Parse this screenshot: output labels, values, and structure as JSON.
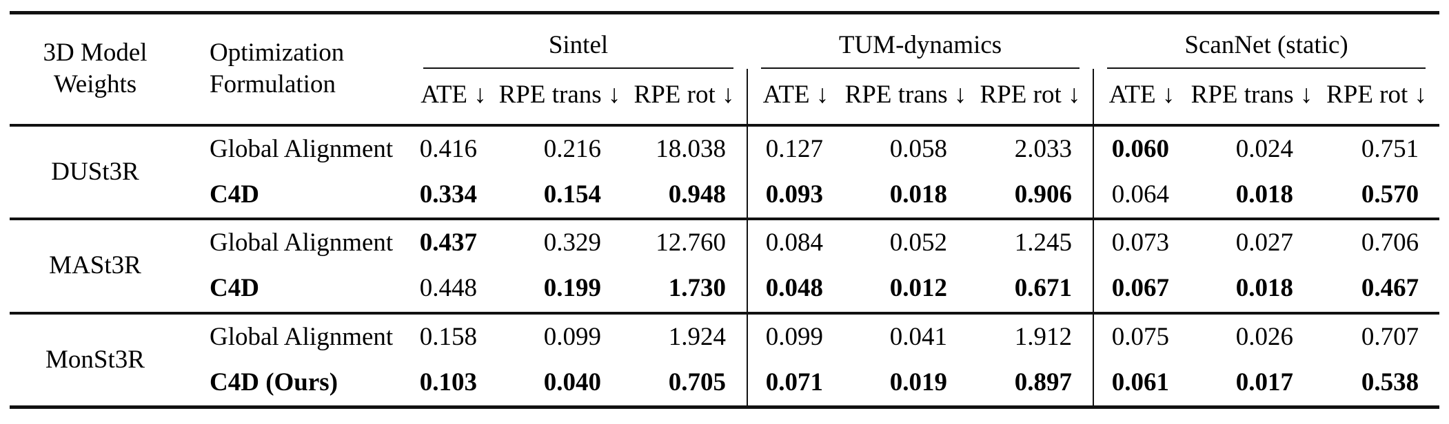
{
  "table": {
    "header": {
      "model_weights": "3D Model Weights",
      "optimization_formulation": "Optimization Formulation",
      "groups": [
        {
          "name": "Sintel",
          "metrics": [
            "ATE ↓",
            "RPE trans ↓",
            "RPE rot ↓"
          ]
        },
        {
          "name": "TUM-dynamics",
          "metrics": [
            "ATE ↓",
            "RPE trans ↓",
            "RPE rot ↓"
          ]
        },
        {
          "name": "ScanNet (static)",
          "metrics": [
            "ATE ↓",
            "RPE trans ↓",
            "RPE rot ↓"
          ]
        }
      ]
    },
    "blocks": [
      {
        "model": "DUSt3R",
        "rows": [
          {
            "formulation": "Global Alignment",
            "formulation_bold": false,
            "values": [
              "0.416",
              "0.216",
              "18.038",
              "0.127",
              "0.058",
              "2.033",
              "0.060",
              "0.024",
              "0.751"
            ],
            "bold": [
              false,
              false,
              false,
              false,
              false,
              false,
              true,
              false,
              false
            ]
          },
          {
            "formulation": "C4D",
            "formulation_bold": true,
            "values": [
              "0.334",
              "0.154",
              "0.948",
              "0.093",
              "0.018",
              "0.906",
              "0.064",
              "0.018",
              "0.570"
            ],
            "bold": [
              true,
              true,
              true,
              true,
              true,
              true,
              false,
              true,
              true
            ]
          }
        ]
      },
      {
        "model": "MASt3R",
        "rows": [
          {
            "formulation": "Global Alignment",
            "formulation_bold": false,
            "values": [
              "0.437",
              "0.329",
              "12.760",
              "0.084",
              "0.052",
              "1.245",
              "0.073",
              "0.027",
              "0.706"
            ],
            "bold": [
              true,
              false,
              false,
              false,
              false,
              false,
              false,
              false,
              false
            ]
          },
          {
            "formulation": "C4D",
            "formulation_bold": true,
            "values": [
              "0.448",
              "0.199",
              "1.730",
              "0.048",
              "0.012",
              "0.671",
              "0.067",
              "0.018",
              "0.467"
            ],
            "bold": [
              false,
              true,
              true,
              true,
              true,
              true,
              true,
              true,
              true
            ]
          }
        ]
      },
      {
        "model": "MonSt3R",
        "rows": [
          {
            "formulation": "Global Alignment",
            "formulation_bold": false,
            "values": [
              "0.158",
              "0.099",
              "1.924",
              "0.099",
              "0.041",
              "1.912",
              "0.075",
              "0.026",
              "0.707"
            ],
            "bold": [
              false,
              false,
              false,
              false,
              false,
              false,
              false,
              false,
              false
            ]
          },
          {
            "formulation": "C4D (Ours)",
            "formulation_bold": true,
            "values": [
              "0.103",
              "0.040",
              "0.705",
              "0.071",
              "0.019",
              "0.897",
              "0.061",
              "0.017",
              "0.538"
            ],
            "bold": [
              true,
              true,
              true,
              true,
              true,
              true,
              true,
              true,
              true
            ]
          }
        ]
      }
    ]
  }
}
